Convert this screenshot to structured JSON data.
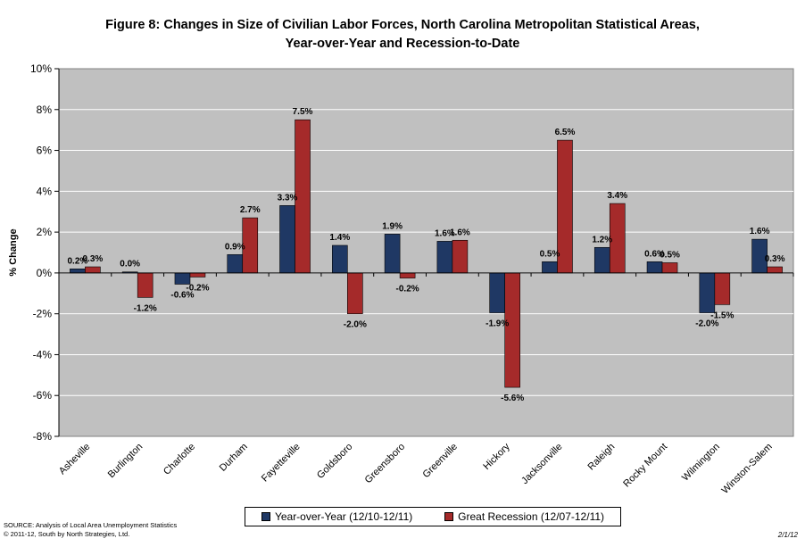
{
  "title_line1": "Figure 8: Changes in Size of Civilian Labor Forces, North Carolina Metropolitan Statistical Areas,",
  "title_line2": "Year-over-Year and Recession-to-Date",
  "source_line1": "SOURCE:  Analysis of Local Area Unemployment Statistics",
  "source_line2": "© 2011-12, South by North Strategies, Ltd.",
  "date_stamp": "2/1/12",
  "colors": {
    "plot_background": "#c0c0c0",
    "yoy": "#1f3864",
    "recession": "#a52a2a"
  },
  "chart_data": {
    "type": "bar",
    "title": "Figure 8: Changes in Size of Civilian Labor Forces, North Carolina Metropolitan Statistical Areas, Year-over-Year and Recession-to-Date",
    "ylabel": "% Change",
    "xlabel": "",
    "ylim": [
      -8,
      10
    ],
    "yticks": [
      -8,
      -6,
      -4,
      -2,
      0,
      2,
      4,
      6,
      8,
      10
    ],
    "ytick_labels": [
      "-8%",
      "-6%",
      "-4%",
      "-2%",
      "0%",
      "2%",
      "4%",
      "6%",
      "8%",
      "10%"
    ],
    "grid": true,
    "legend_position": "bottom",
    "categories": [
      "Asheville",
      "Burlington",
      "Charlotte",
      "Durham",
      "Fayetteville",
      "Goldsboro",
      "Greensboro",
      "Greenville",
      "Hickory",
      "Jacksonville",
      "Raleigh",
      "Rocky Mount",
      "Wilmington",
      "Winston-Salem"
    ],
    "series": [
      {
        "name": "Year-over-Year (12/10-12/11)",
        "color": "#1f3864",
        "values": [
          0.2,
          0.0,
          -0.6,
          0.9,
          3.3,
          1.4,
          1.9,
          1.6,
          -1.9,
          0.5,
          1.2,
          0.6,
          -2.0,
          1.6
        ],
        "bar_values": [
          0.2,
          0.05,
          -0.55,
          0.9,
          3.3,
          1.35,
          1.9,
          1.55,
          -1.95,
          0.55,
          1.25,
          0.55,
          -1.95,
          1.65
        ],
        "labels": [
          "0.2%",
          "0.0%",
          "-0.6%",
          "0.9%",
          "3.3%",
          "1.4%",
          "1.9%",
          "1.6%",
          "-1.9%",
          "0.5%",
          "1.2%",
          "0.6%",
          "-2.0%",
          "1.6%"
        ]
      },
      {
        "name": "Great Recession (12/07-12/11)",
        "color": "#a52a2a",
        "values": [
          0.3,
          -1.2,
          -0.2,
          2.7,
          7.5,
          -2.0,
          -0.2,
          1.6,
          -5.6,
          6.5,
          3.4,
          0.5,
          -1.5,
          0.3
        ],
        "bar_values": [
          0.3,
          -1.2,
          -0.2,
          2.7,
          7.5,
          -2.0,
          -0.25,
          1.6,
          -5.6,
          6.5,
          3.4,
          0.5,
          -1.55,
          0.3
        ],
        "labels": [
          "0.3%",
          "-1.2%",
          "-0.2%",
          "2.7%",
          "7.5%",
          "-2.0%",
          "-0.2%",
          "1.6%",
          "-5.6%",
          "6.5%",
          "3.4%",
          "0.5%",
          "-1.5%",
          "0.3%"
        ]
      }
    ]
  }
}
